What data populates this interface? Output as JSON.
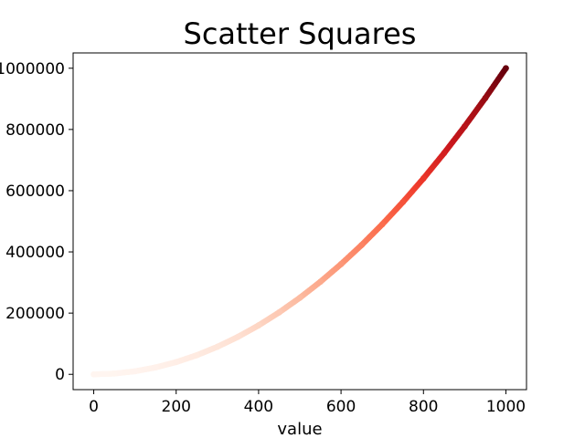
{
  "chart_data": {
    "type": "scatter",
    "title": "Scatter Squares",
    "xlabel": "value",
    "ylabel": "",
    "xlim": [
      -50,
      1050
    ],
    "ylim": [
      -50000,
      1050000
    ],
    "x_ticks": [
      "0",
      "200",
      "400",
      "600",
      "800",
      "1000"
    ],
    "y_ticks": [
      "0",
      "200000",
      "400000",
      "600000",
      "800000",
      "1000000"
    ],
    "grid": false,
    "legend": "none",
    "colormap": "Reds",
    "color_stops": [
      "#fff5f0",
      "#fee0d2",
      "#fcbba1",
      "#fc9272",
      "#fb6a4a",
      "#ef3b2c",
      "#cb181d",
      "#a50f15",
      "#67000d"
    ],
    "series": [
      {
        "x": [
          0,
          50,
          100,
          150,
          200,
          250,
          300,
          350,
          400,
          450,
          500,
          550,
          600,
          650,
          700,
          750,
          800,
          850,
          900,
          950,
          1000
        ],
        "y": [
          0,
          2500,
          10000,
          22500,
          40000,
          62500,
          90000,
          122500,
          160000,
          202500,
          250000,
          302500,
          360000,
          422500,
          490000,
          562500,
          640000,
          722500,
          810000,
          902500,
          1000000
        ]
      }
    ]
  }
}
